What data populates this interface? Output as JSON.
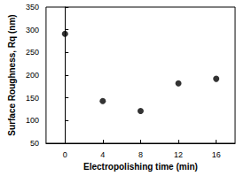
{
  "chart_data": {
    "type": "scatter",
    "x_label": "Electropolishing time (min)",
    "y_label": "Surface Roughness, Rq (nm)",
    "x": [
      0,
      4,
      8,
      12,
      16
    ],
    "values": [
      291,
      143,
      121,
      182,
      192
    ],
    "color": "#000000",
    "marker": "circle",
    "xlim": [
      -2,
      18
    ],
    "xticks": [
      0,
      4,
      8,
      12,
      16
    ],
    "ylim": [
      50,
      350
    ],
    "yticks": [
      50,
      100,
      150,
      200,
      250,
      300,
      350
    ],
    "grid": false
  }
}
